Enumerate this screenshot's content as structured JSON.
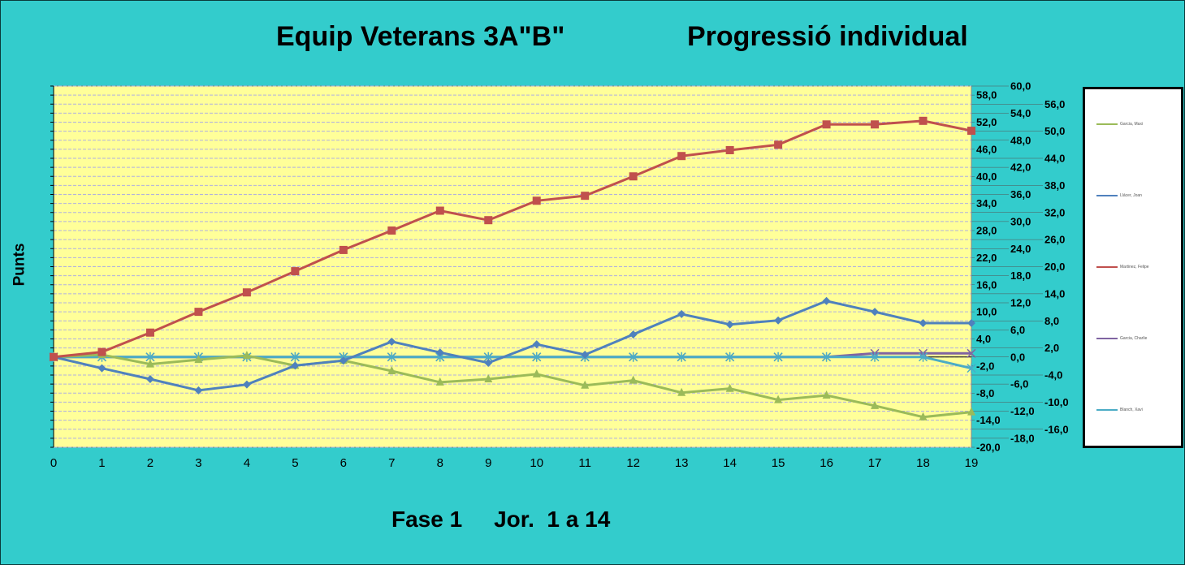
{
  "chart_data": {
    "type": "line",
    "title": "Equip Veterans 3A\"B\"",
    "subtitle": "Progressió individual",
    "footer": "Fase 1     Jor.  1 a 14",
    "xlabel": "",
    "ylabel": "Punts",
    "x": [
      0,
      1,
      2,
      3,
      4,
      5,
      6,
      7,
      8,
      9,
      10,
      11,
      12,
      13,
      14,
      15,
      16,
      17,
      18,
      19
    ],
    "ylim": [
      -20,
      60
    ],
    "ytick_step": 2,
    "grid": true,
    "legend_position": "right",
    "series": [
      {
        "name": "Garcia, Maxi",
        "color": "#9bbb59",
        "marker": "triangle",
        "values": [
          0,
          0.5,
          -1.6,
          -0.6,
          0.3,
          -1.9,
          -0.8,
          -3.1,
          -5.6,
          -4.9,
          -3.8,
          -6.3,
          -5.2,
          -7.9,
          -7.0,
          -9.5,
          -8.5,
          -10.8,
          -13.3,
          -12.2
        ]
      },
      {
        "name": "Llácer, Joan",
        "color": "#4f81bd",
        "marker": "diamond",
        "values": [
          0,
          -2.5,
          -4.9,
          -7.4,
          -6.1,
          -1.9,
          -0.8,
          3.4,
          1.0,
          -1.3,
          2.8,
          0.5,
          5.0,
          9.5,
          7.2,
          8.1,
          12.4,
          10.0,
          7.5,
          7.5
        ]
      },
      {
        "name": "Martinez, Felipe",
        "color": "#c0504d",
        "marker": "square",
        "values": [
          0,
          1.1,
          5.4,
          10.0,
          14.3,
          19.0,
          23.7,
          28.0,
          32.4,
          30.3,
          34.6,
          35.7,
          40.0,
          44.5,
          45.8,
          47.0,
          51.5,
          51.5,
          52.3,
          50.1
        ]
      },
      {
        "name": "Garcia, Charlie",
        "color": "#8064a2",
        "marker": "x",
        "values": [
          0,
          0,
          0,
          0,
          0,
          0,
          0,
          0,
          0,
          0,
          0,
          0,
          0,
          0,
          0,
          0,
          0,
          0.8,
          0.8,
          0.8
        ]
      },
      {
        "name": "Blanch, Xavi",
        "color": "#4bacc6",
        "marker": "star",
        "values": [
          0,
          0,
          0,
          0,
          0,
          0,
          0,
          0,
          0,
          0,
          0,
          0,
          0,
          0,
          0,
          0,
          0,
          0,
          0,
          -2.5
        ]
      }
    ]
  }
}
